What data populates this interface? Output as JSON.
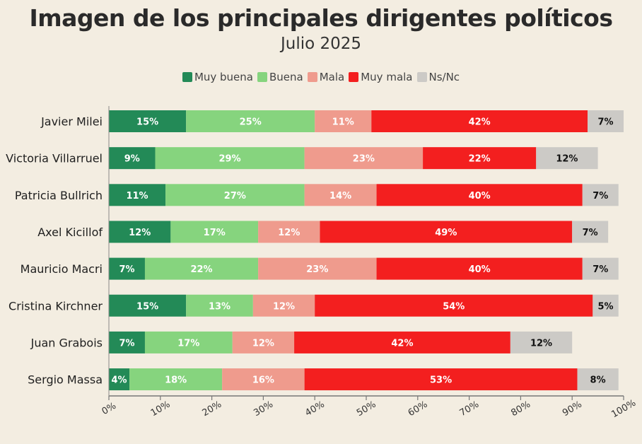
{
  "chart_data": {
    "type": "bar",
    "orientation": "horizontal",
    "stacked": true,
    "title": "Imagen de los principales dirigentes políticos",
    "subtitle": "Julio 2025",
    "categories": [
      "Javier Milei",
      "Victoria Villarruel",
      "Patricia Bullrich",
      "Axel Kicillof",
      "Mauricio Macri",
      "Cristina Kirchner",
      "Juan Grabois",
      "Sergio Massa"
    ],
    "series": [
      {
        "name": "Muy buena",
        "color": "#238a57",
        "label_color": "#ffffff",
        "values": [
          15,
          9,
          11,
          12,
          7,
          15,
          7,
          4
        ]
      },
      {
        "name": "Buena",
        "color": "#86d47e",
        "label_color": "#ffffff",
        "values": [
          25,
          29,
          27,
          17,
          22,
          13,
          17,
          18
        ]
      },
      {
        "name": "Mala",
        "color": "#ef9b8d",
        "label_color": "#ffffff",
        "values": [
          11,
          23,
          14,
          12,
          23,
          12,
          12,
          16
        ]
      },
      {
        "name": "Muy mala",
        "color": "#f31f1f",
        "label_color": "#ffffff",
        "values": [
          42,
          22,
          40,
          49,
          40,
          54,
          42,
          53
        ]
      },
      {
        "name": "Ns/Nc",
        "color": "#cccac6",
        "label_color": "#111111",
        "values": [
          7,
          12,
          7,
          7,
          7,
          5,
          12,
          8
        ]
      }
    ],
    "xlim": [
      0,
      100
    ],
    "x_ticks": [
      "0%",
      "10%",
      "20%",
      "30%",
      "40%",
      "50%",
      "60%",
      "70%",
      "80%",
      "90%",
      "100%"
    ],
    "legend_position": "top-center",
    "grid": false
  }
}
